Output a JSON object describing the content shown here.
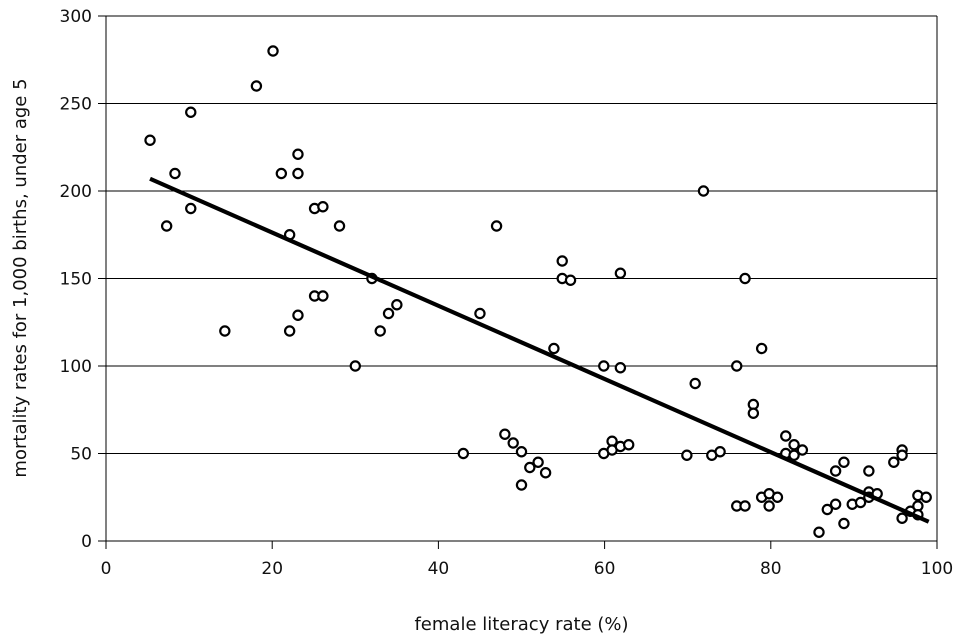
{
  "chart_data": {
    "type": "scatter",
    "xlabel": "female literacy rate (%)",
    "ylabel": "mortality rates for 1,000 births, under age 5",
    "xlim": [
      0,
      100
    ],
    "ylim": [
      0,
      300
    ],
    "x_ticks": [
      "0",
      "20",
      "40",
      "60",
      "80",
      "100"
    ],
    "y_ticks": [
      "0",
      "50",
      "100",
      "150",
      "200",
      "250",
      "300"
    ],
    "grid": "horizontal",
    "legend": "none",
    "colors": {
      "marker_edge": "#000000",
      "marker_fill": "#ffffff",
      "trendline": "#000000",
      "gridline": "#000000"
    },
    "points": [
      {
        "x": 5.3,
        "y": 229
      },
      {
        "x": 7.3,
        "y": 180
      },
      {
        "x": 8.3,
        "y": 210
      },
      {
        "x": 10.2,
        "y": 245
      },
      {
        "x": 10.2,
        "y": 190
      },
      {
        "x": 14.3,
        "y": 120
      },
      {
        "x": 18.1,
        "y": 260
      },
      {
        "x": 20.1,
        "y": 280
      },
      {
        "x": 21.1,
        "y": 210
      },
      {
        "x": 22.1,
        "y": 175
      },
      {
        "x": 22.1,
        "y": 120
      },
      {
        "x": 23.1,
        "y": 221
      },
      {
        "x": 23.1,
        "y": 210
      },
      {
        "x": 23.1,
        "y": 129
      },
      {
        "x": 25.1,
        "y": 190
      },
      {
        "x": 25.1,
        "y": 140
      },
      {
        "x": 26.1,
        "y": 191
      },
      {
        "x": 26.1,
        "y": 140
      },
      {
        "x": 28.1,
        "y": 180
      },
      {
        "x": 30.0,
        "y": 100
      },
      {
        "x": 32.0,
        "y": 150
      },
      {
        "x": 33.0,
        "y": 120
      },
      {
        "x": 34.0,
        "y": 130
      },
      {
        "x": 35.0,
        "y": 135
      },
      {
        "x": 43.0,
        "y": 50
      },
      {
        "x": 45.0,
        "y": 130
      },
      {
        "x": 47.0,
        "y": 180
      },
      {
        "x": 48.0,
        "y": 61
      },
      {
        "x": 49.0,
        "y": 56
      },
      {
        "x": 50.0,
        "y": 51
      },
      {
        "x": 50.0,
        "y": 32
      },
      {
        "x": 51.0,
        "y": 42
      },
      {
        "x": 52.0,
        "y": 45
      },
      {
        "x": 52.9,
        "y": 39
      },
      {
        "x": 53.9,
        "y": 110
      },
      {
        "x": 54.9,
        "y": 160
      },
      {
        "x": 54.9,
        "y": 150
      },
      {
        "x": 55.9,
        "y": 149
      },
      {
        "x": 59.9,
        "y": 100
      },
      {
        "x": 59.9,
        "y": 50
      },
      {
        "x": 60.9,
        "y": 57
      },
      {
        "x": 60.9,
        "y": 52
      },
      {
        "x": 61.9,
        "y": 153
      },
      {
        "x": 61.9,
        "y": 99
      },
      {
        "x": 61.9,
        "y": 54
      },
      {
        "x": 62.9,
        "y": 55
      },
      {
        "x": 69.9,
        "y": 49
      },
      {
        "x": 70.9,
        "y": 90
      },
      {
        "x": 71.9,
        "y": 200
      },
      {
        "x": 72.9,
        "y": 49
      },
      {
        "x": 73.9,
        "y": 51
      },
      {
        "x": 75.9,
        "y": 100
      },
      {
        "x": 75.9,
        "y": 20
      },
      {
        "x": 76.9,
        "y": 150
      },
      {
        "x": 76.9,
        "y": 20
      },
      {
        "x": 77.9,
        "y": 78
      },
      {
        "x": 77.9,
        "y": 73
      },
      {
        "x": 78.9,
        "y": 110
      },
      {
        "x": 78.9,
        "y": 25
      },
      {
        "x": 79.8,
        "y": 27
      },
      {
        "x": 79.8,
        "y": 20
      },
      {
        "x": 80.8,
        "y": 25
      },
      {
        "x": 81.8,
        "y": 60
      },
      {
        "x": 81.8,
        "y": 50
      },
      {
        "x": 82.8,
        "y": 55
      },
      {
        "x": 82.8,
        "y": 49
      },
      {
        "x": 83.8,
        "y": 52
      },
      {
        "x": 85.8,
        "y": 5
      },
      {
        "x": 86.8,
        "y": 18
      },
      {
        "x": 87.8,
        "y": 40
      },
      {
        "x": 87.8,
        "y": 21
      },
      {
        "x": 88.8,
        "y": 45
      },
      {
        "x": 88.8,
        "y": 10
      },
      {
        "x": 89.8,
        "y": 21
      },
      {
        "x": 90.8,
        "y": 22
      },
      {
        "x": 91.8,
        "y": 40
      },
      {
        "x": 91.8,
        "y": 28
      },
      {
        "x": 91.8,
        "y": 25
      },
      {
        "x": 92.8,
        "y": 27
      },
      {
        "x": 94.8,
        "y": 45
      },
      {
        "x": 95.8,
        "y": 52
      },
      {
        "x": 95.8,
        "y": 49
      },
      {
        "x": 95.8,
        "y": 13
      },
      {
        "x": 96.8,
        "y": 17
      },
      {
        "x": 97.7,
        "y": 26
      },
      {
        "x": 97.7,
        "y": 20
      },
      {
        "x": 97.7,
        "y": 15
      },
      {
        "x": 98.7,
        "y": 25
      }
    ],
    "trendline": {
      "type": "linear",
      "x": [
        5.3,
        99.0
      ],
      "y": [
        207,
        11
      ]
    }
  }
}
